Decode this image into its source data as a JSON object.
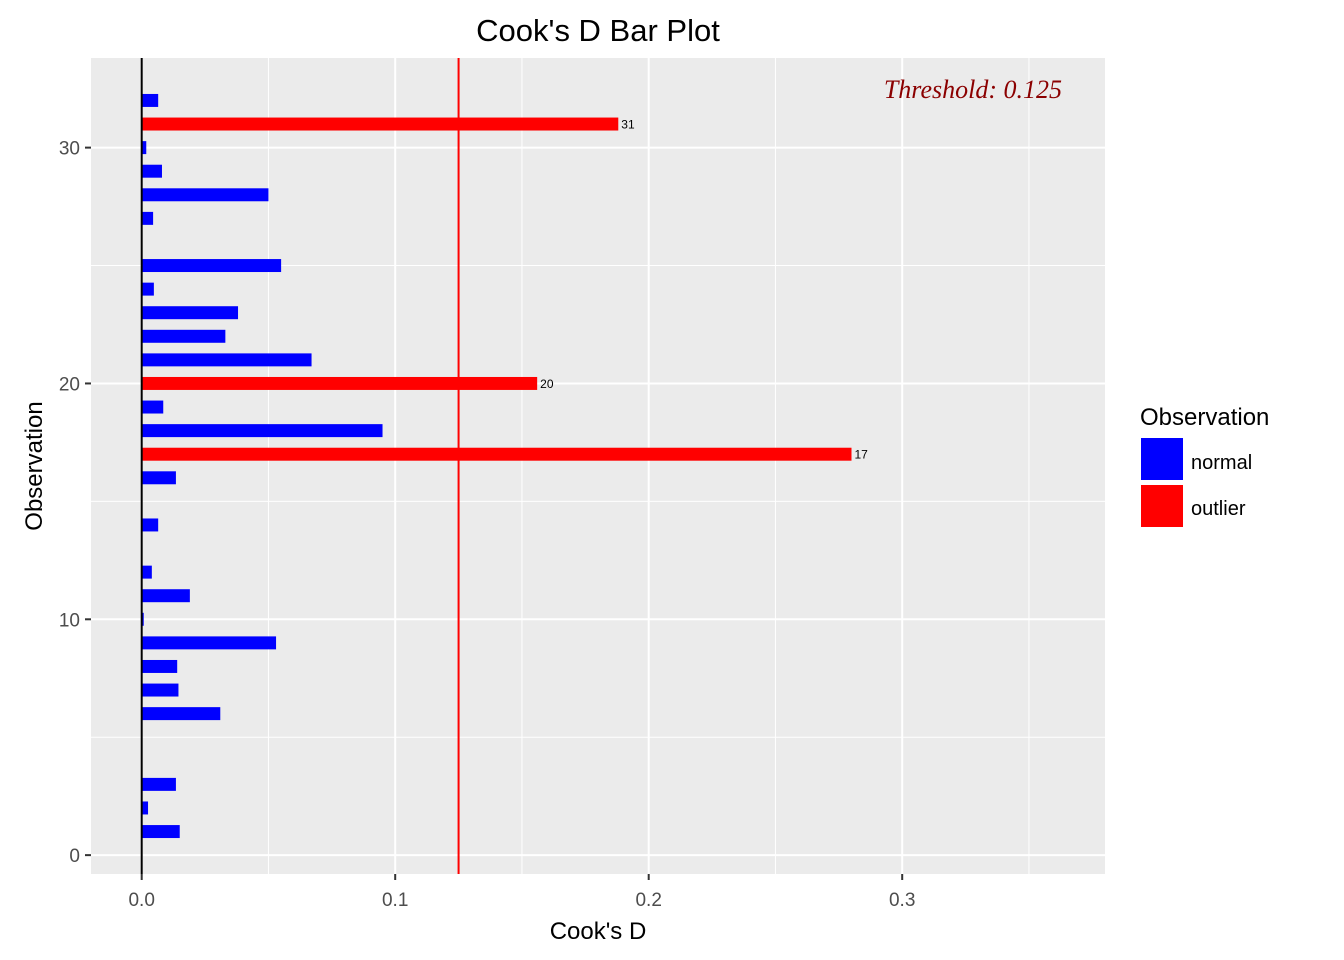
{
  "chart_data": {
    "type": "bar",
    "orientation": "horizontal",
    "title": "Cook's D Bar Plot",
    "xlabel": "Cook's D",
    "ylabel": "Observation",
    "xlim": [
      -0.02,
      0.38
    ],
    "ylim": [
      -0.8,
      33.8
    ],
    "x_ticks": [
      0.0,
      0.1,
      0.2,
      0.3
    ],
    "x_tick_labels": [
      "0.0",
      "0.1",
      "0.2",
      "0.3"
    ],
    "y_ticks": [
      0,
      10,
      20,
      30
    ],
    "y_tick_labels": [
      "0",
      "10",
      "20",
      "30"
    ],
    "threshold": 0.125,
    "threshold_label": "Threshold: 0.125",
    "grid": true,
    "legend": {
      "title": "Observation",
      "position": "right",
      "entries": [
        {
          "label": "normal",
          "color": "#0000ff"
        },
        {
          "label": "outlier",
          "color": "#ff0000"
        }
      ]
    },
    "colors": {
      "normal": "#0000ff",
      "outlier": "#ff0000",
      "threshold_line": "#ff0000",
      "panel": "#ebebeb",
      "grid": "#ffffff"
    },
    "points": [
      {
        "obs": 1,
        "d": 0.015,
        "group": "normal"
      },
      {
        "obs": 2,
        "d": 0.0025,
        "group": "normal"
      },
      {
        "obs": 3,
        "d": 0.0135,
        "group": "normal"
      },
      {
        "obs": 4,
        "d": 0.0,
        "group": "normal"
      },
      {
        "obs": 5,
        "d": 0.0,
        "group": "normal"
      },
      {
        "obs": 6,
        "d": 0.031,
        "group": "normal"
      },
      {
        "obs": 7,
        "d": 0.0145,
        "group": "normal"
      },
      {
        "obs": 8,
        "d": 0.014,
        "group": "normal"
      },
      {
        "obs": 9,
        "d": 0.053,
        "group": "normal"
      },
      {
        "obs": 10,
        "d": 0.0008,
        "group": "normal"
      },
      {
        "obs": 11,
        "d": 0.019,
        "group": "normal"
      },
      {
        "obs": 12,
        "d": 0.004,
        "group": "normal"
      },
      {
        "obs": 13,
        "d": 0.0,
        "group": "normal"
      },
      {
        "obs": 14,
        "d": 0.0065,
        "group": "normal"
      },
      {
        "obs": 15,
        "d": 0.0,
        "group": "normal"
      },
      {
        "obs": 16,
        "d": 0.0135,
        "group": "normal"
      },
      {
        "obs": 17,
        "d": 0.28,
        "group": "outlier",
        "label": "17"
      },
      {
        "obs": 18,
        "d": 0.095,
        "group": "normal"
      },
      {
        "obs": 19,
        "d": 0.0085,
        "group": "normal"
      },
      {
        "obs": 20,
        "d": 0.156,
        "group": "outlier",
        "label": "20"
      },
      {
        "obs": 21,
        "d": 0.067,
        "group": "normal"
      },
      {
        "obs": 22,
        "d": 0.033,
        "group": "normal"
      },
      {
        "obs": 23,
        "d": 0.038,
        "group": "normal"
      },
      {
        "obs": 24,
        "d": 0.0048,
        "group": "normal"
      },
      {
        "obs": 25,
        "d": 0.055,
        "group": "normal"
      },
      {
        "obs": 26,
        "d": 0.0,
        "group": "normal"
      },
      {
        "obs": 27,
        "d": 0.0045,
        "group": "normal"
      },
      {
        "obs": 28,
        "d": 0.05,
        "group": "normal"
      },
      {
        "obs": 29,
        "d": 0.008,
        "group": "normal"
      },
      {
        "obs": 30,
        "d": 0.0018,
        "group": "normal"
      },
      {
        "obs": 31,
        "d": 0.188,
        "group": "outlier",
        "label": "31"
      },
      {
        "obs": 32,
        "d": 0.0065,
        "group": "normal"
      }
    ]
  }
}
